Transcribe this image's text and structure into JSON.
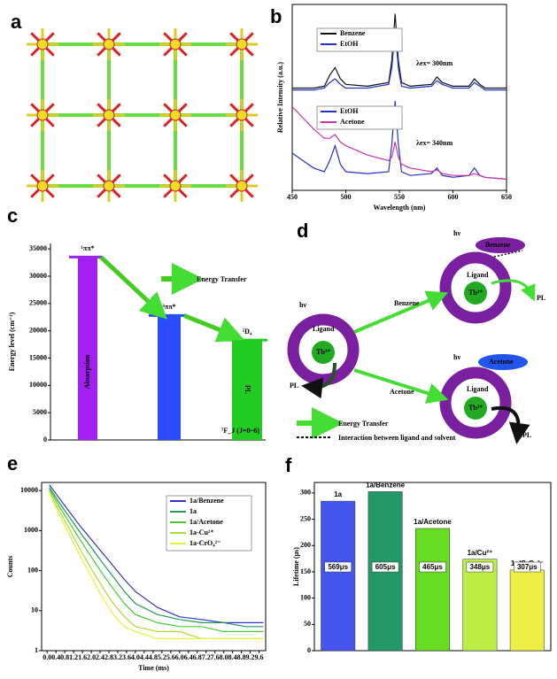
{
  "panel_labels": [
    "a",
    "b",
    "c",
    "d",
    "e",
    "f"
  ],
  "chart_data": [
    {
      "type": "line",
      "xlabel": "Wavelength (nm)",
      "ylabel": "Relative Intensity (a.u.)",
      "xlim": [
        450,
        650
      ],
      "xticks": [
        450,
        500,
        550,
        600,
        650
      ],
      "ylim": [
        0,
        100
      ],
      "series": [
        {
          "name": "Benzene",
          "color": "#111111",
          "x": [
            450,
            470,
            480,
            485,
            490,
            495,
            500,
            520,
            540,
            543,
            546,
            549,
            552,
            560,
            580,
            585,
            590,
            600,
            615,
            620,
            625,
            630,
            650
          ],
          "values": [
            55,
            55,
            56,
            62,
            66,
            60,
            57,
            56,
            58,
            70,
            95,
            70,
            58,
            56,
            57,
            61,
            58,
            56,
            56,
            60,
            57,
            55,
            55
          ]
        },
        {
          "name": "EtOH",
          "color": "#2233cc",
          "x": [
            450,
            470,
            480,
            485,
            490,
            495,
            500,
            520,
            540,
            543,
            546,
            549,
            552,
            560,
            580,
            585,
            590,
            600,
            615,
            620,
            625,
            630,
            650
          ],
          "values": [
            54,
            54,
            55,
            58,
            60,
            57,
            55,
            55,
            57,
            66,
            87,
            66,
            56,
            55,
            56,
            59,
            57,
            55,
            55,
            58,
            56,
            54,
            54
          ]
        },
        {
          "name": "EtOH",
          "color": "#2233cc",
          "x": [
            450,
            470,
            480,
            485,
            490,
            495,
            500,
            520,
            540,
            543,
            546,
            549,
            552,
            560,
            580,
            585,
            590,
            600,
            615,
            620,
            625,
            630,
            650
          ],
          "values": [
            20,
            12,
            10,
            16,
            24,
            14,
            10,
            9,
            10,
            25,
            48,
            25,
            10,
            8,
            9,
            12,
            8,
            7,
            8,
            12,
            8,
            7,
            6
          ]
        },
        {
          "name": "Acetone",
          "color": "#cc33aa",
          "x": [
            450,
            470,
            480,
            485,
            490,
            495,
            500,
            520,
            540,
            543,
            546,
            549,
            552,
            560,
            580,
            585,
            590,
            600,
            615,
            620,
            625,
            630,
            650
          ],
          "values": [
            45,
            33,
            28,
            28,
            30,
            26,
            24,
            19,
            16,
            18,
            26,
            18,
            14,
            12,
            10,
            11,
            9,
            8,
            8,
            9,
            8,
            7,
            6
          ]
        }
      ],
      "annotations": [
        "λex= 300nm",
        "λex= 340nm"
      ]
    },
    {
      "type": "energy-level",
      "ylabel": "Energy level (cm⁻¹)",
      "ylim": [
        0,
        36000
      ],
      "yticks": [
        0,
        5000,
        10000,
        15000,
        20000,
        25000,
        30000,
        35000
      ],
      "levels": [
        {
          "label": "¹ππ*",
          "value": 33500,
          "color": "#a020f0"
        },
        {
          "label": "³ππ*",
          "value": 22800,
          "color": "#2b4bff"
        },
        {
          "label": "⁵D₄",
          "value": 18300,
          "color": "#22cc22"
        }
      ],
      "annotations": [
        "Absorption",
        "Energy Transfer",
        "PL",
        "⁷F_J (J=0~6)"
      ]
    },
    {
      "type": "line",
      "log_y": true,
      "xlabel": "Time (ms)",
      "ylabel": "Counts",
      "xlim": [
        -0.25,
        9.9
      ],
      "ylim": [
        1,
        16000
      ],
      "xticks": [
        {
          "value": 0,
          "label": "0.0"
        },
        0.4,
        0.8,
        1.2,
        1.6,
        {
          "value": 2,
          "label": "2.0"
        },
        2.4,
        2.8,
        3.2,
        3.6,
        {
          "value": 4,
          "label": "4.0"
        },
        4.4,
        4.8,
        5.2,
        5.6,
        {
          "value": 6,
          "label": "6.0"
        },
        6.4,
        6.8,
        7.2,
        7.6,
        {
          "value": 8,
          "label": "8.0"
        },
        8.4,
        8.8,
        9.2,
        9.6
      ],
      "yticks": [
        1,
        10,
        100,
        1000,
        10000
      ],
      "series": [
        {
          "name": "1a/Benzene",
          "color": "#3333cc",
          "x": [
            0.1,
            0.5,
            1,
            1.5,
            2,
            2.5,
            3,
            3.5,
            4,
            5,
            6,
            7,
            8,
            9,
            9.8
          ],
          "values": [
            14000,
            7000,
            3000,
            1300,
            600,
            280,
            130,
            60,
            30,
            12,
            7,
            6,
            5,
            5,
            5
          ]
        },
        {
          "name": "1a",
          "color": "#229955",
          "x": [
            0.1,
            0.5,
            1,
            1.5,
            2,
            2.5,
            3,
            3.5,
            4,
            5,
            6,
            7,
            8,
            9,
            9.8
          ],
          "values": [
            12000,
            5500,
            2200,
            900,
            380,
            160,
            70,
            30,
            15,
            8,
            6,
            5,
            5,
            4,
            4
          ]
        },
        {
          "name": "1a/Acetone",
          "color": "#44cc33",
          "x": [
            0.1,
            0.5,
            1,
            1.5,
            2,
            2.5,
            3,
            3.5,
            4,
            5,
            6,
            7,
            8,
            9,
            9.8
          ],
          "values": [
            11000,
            4500,
            1600,
            580,
            220,
            85,
            35,
            15,
            8,
            5,
            4,
            4,
            3,
            3,
            3
          ]
        },
        {
          "name": "1a-Cu²⁺",
          "color": "#aadd33",
          "x": [
            0.1,
            0.5,
            1,
            1.5,
            2,
            2.5,
            3,
            3.5,
            4,
            5,
            6,
            7,
            8,
            9,
            9.8
          ],
          "values": [
            10000,
            3500,
            1100,
            340,
            110,
            40,
            15,
            7,
            4,
            3,
            3,
            2,
            2,
            2,
            2
          ]
        },
        {
          "name": "1a-CrO₄²⁻",
          "color": "#eeee33",
          "x": [
            0.1,
            0.5,
            1,
            1.5,
            2,
            2.5,
            3,
            3.5,
            4,
            5,
            6,
            7,
            8,
            9,
            9.8
          ],
          "values": [
            9000,
            2800,
            800,
            230,
            70,
            22,
            8,
            4,
            3,
            2,
            2,
            2,
            2,
            2,
            2
          ]
        }
      ]
    },
    {
      "type": "bar",
      "ylabel": "Lifetime (μs)",
      "ylim": [
        0,
        320
      ],
      "yticks": [
        0,
        50,
        100,
        150,
        200,
        250,
        300
      ],
      "categories": [
        "1a",
        "1a/Benzene",
        "1a/Acetone",
        "1a/Cu²⁺",
        "1a/CrO₄²⁻"
      ],
      "values": [
        284.5,
        302.5,
        232.5,
        174,
        153.5
      ],
      "colors": [
        "#4455ee",
        "#229966",
        "#66dd22",
        "#bbee44",
        "#eeee44"
      ],
      "annotations": [
        "569μs",
        "605μs",
        "465μs",
        "348μs",
        "307μs"
      ]
    }
  ],
  "diagram": {
    "left_complex": {
      "light": "hν",
      "ligand": "Ligand",
      "center": "Tb³⁺",
      "emission": "PL"
    },
    "arrows": {
      "benzene": "Benzene",
      "acetone": "Acetone"
    },
    "benzene_complex": {
      "light": "hν",
      "solvent": "Benzene",
      "ligand": "Ligand",
      "center": "Tb³⁺",
      "emission": "PL"
    },
    "acetone_complex": {
      "light": "hν",
      "solvent": "Acetone",
      "ligand": "Ligand",
      "center": "Tb³⁺",
      "emission": "PL"
    },
    "legend": {
      "energy_transfer": "Energy Transfer",
      "interaction": "Interaction between ligand and solvent"
    }
  }
}
